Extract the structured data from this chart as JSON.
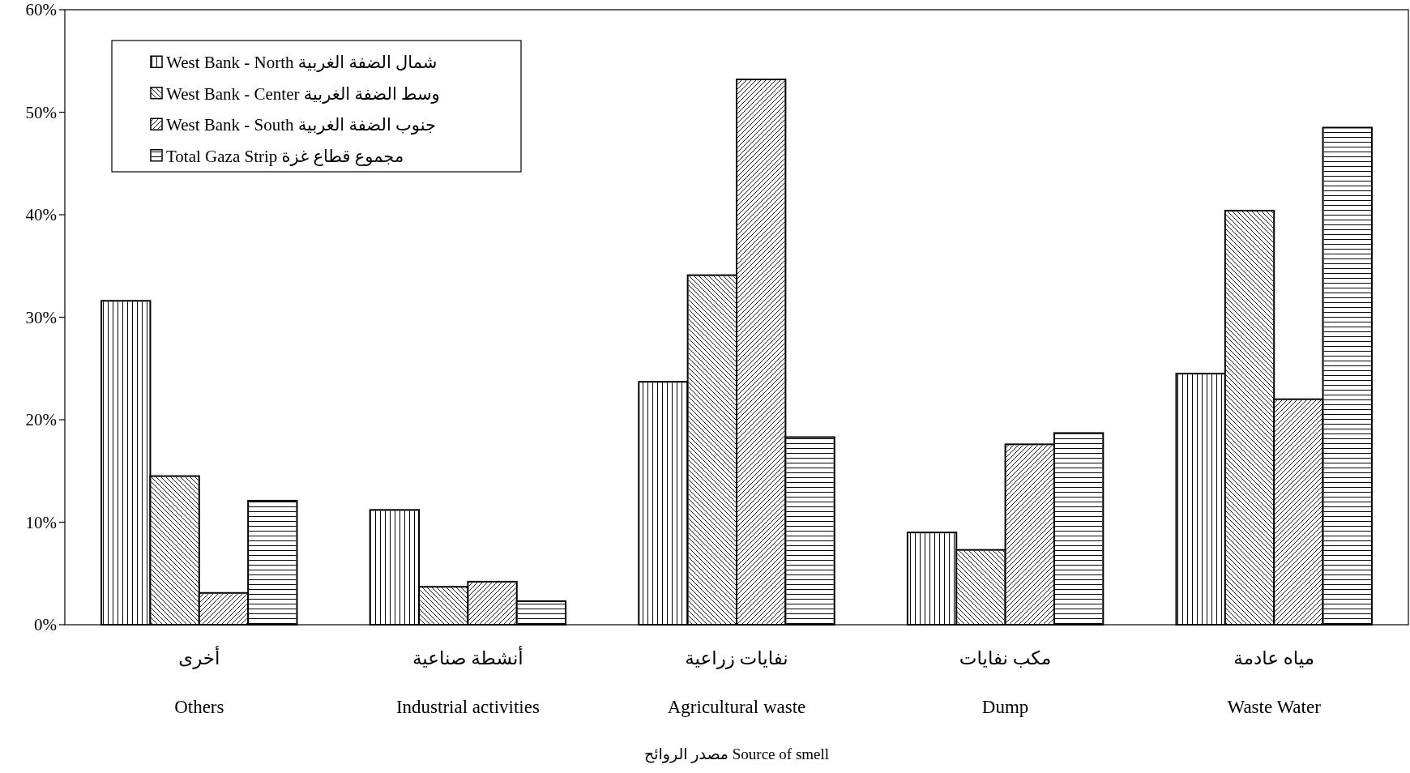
{
  "chart_data": {
    "type": "bar",
    "annotations": [
      "مصدر الروائح Source of smell"
    ],
    "categories": [
      "أخرى\nOthers",
      "أنشطة صناعية\nIndustrial activities",
      "نفايات زراعية\nAgricultural waste",
      "مكب نفايات\nDump",
      "مياه عادمة\nWaste Water"
    ],
    "series": [
      {
        "name": "West Bank - North شمال الضفة الغربية",
        "color": "#ffffff",
        "values": [
          31.6,
          11.2,
          23.7,
          9.0,
          24.5
        ]
      },
      {
        "name": "West Bank - Center وسط الضفة الغربية",
        "color": "#ffffff",
        "values": [
          14.5,
          3.7,
          34.1,
          7.3,
          40.4
        ]
      },
      {
        "name": "West Bank - South جنوب الضفة الغربية",
        "color": "#ffffff",
        "values": [
          3.1,
          4.2,
          53.2,
          17.6,
          22.0
        ]
      },
      {
        "name": "Total Gaza Strip مجموع قطاع غزة",
        "color": "#ffffff",
        "values": [
          12.1,
          2.3,
          18.3,
          18.7,
          48.5
        ]
      }
    ],
    "ylim": [
      0,
      60
    ],
    "yticks": [
      {
        "value": 0,
        "label": "0%"
      },
      {
        "value": 10,
        "label": "10%"
      },
      {
        "value": 20,
        "label": "20%"
      },
      {
        "value": 30,
        "label": "30%"
      },
      {
        "value": 40,
        "label": "40%"
      },
      {
        "value": 50,
        "label": "50%"
      },
      {
        "value": 60,
        "label": "60%"
      }
    ],
    "legend": "top left"
  }
}
